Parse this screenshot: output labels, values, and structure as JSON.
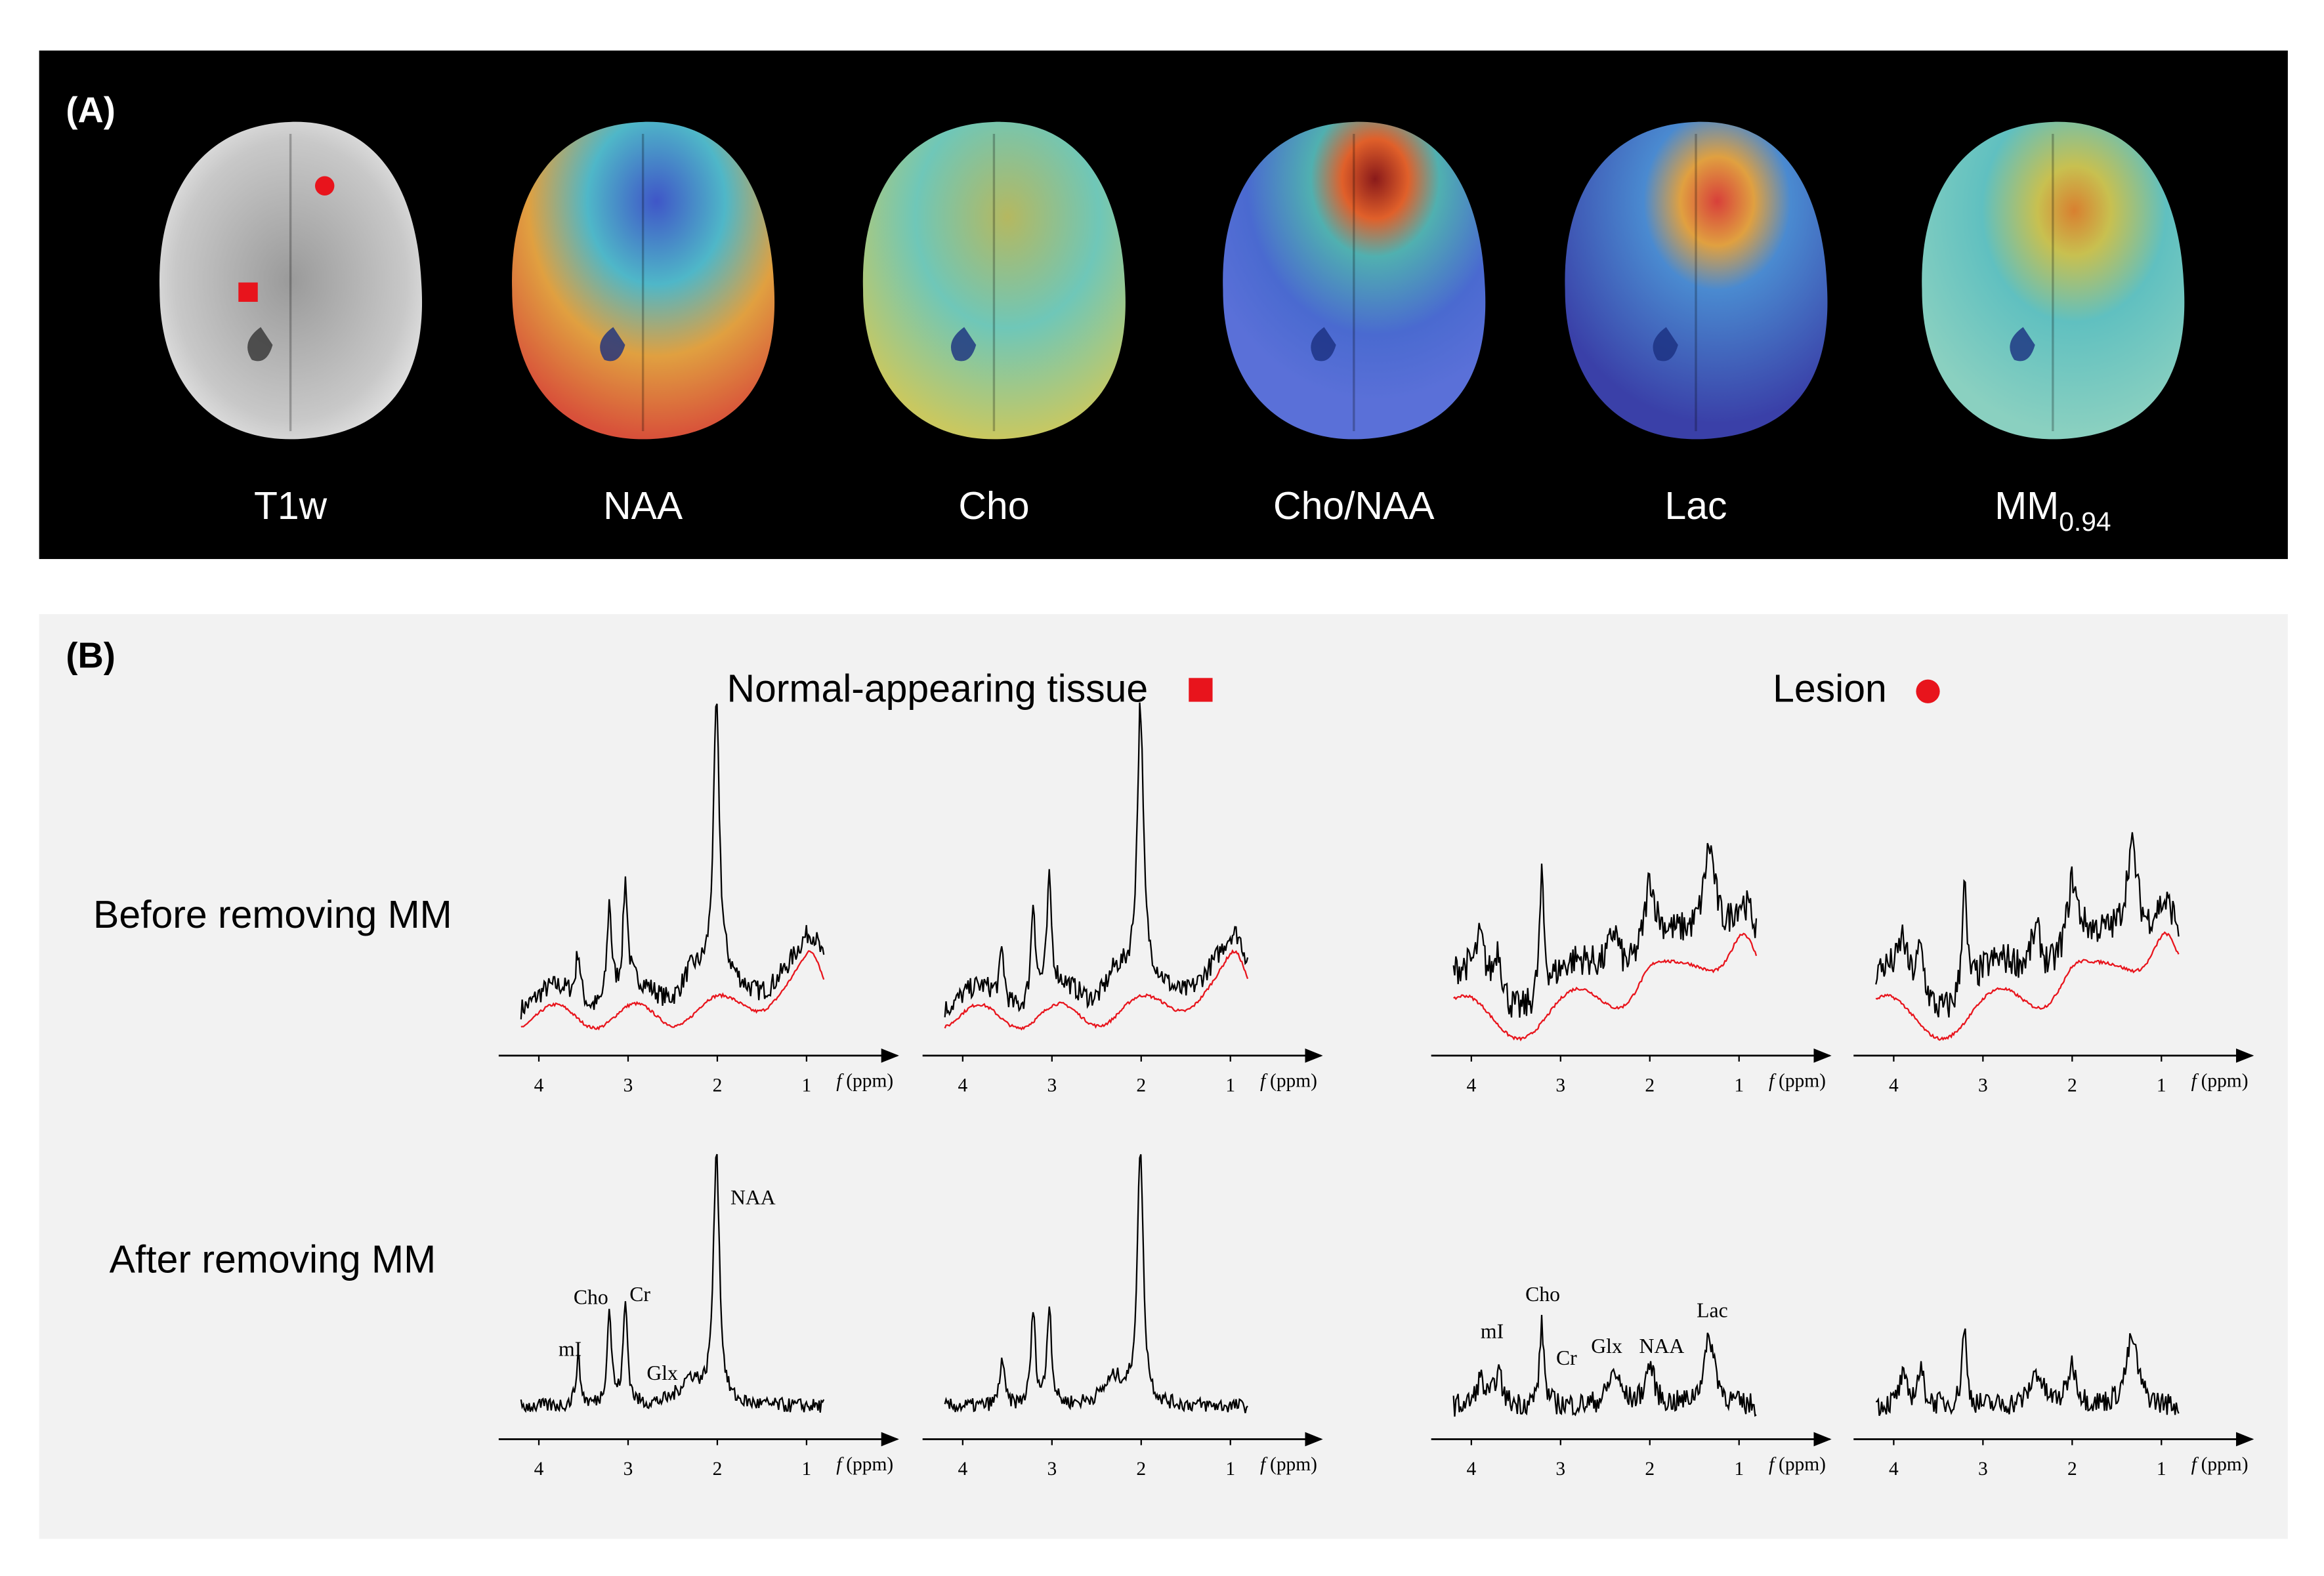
{
  "panel_a": {
    "label": "(A)",
    "images": [
      {
        "label": "T1w"
      },
      {
        "label": "NAA"
      },
      {
        "label": "Cho"
      },
      {
        "label": "Cho/NAA"
      },
      {
        "label": "Lac"
      },
      {
        "label": "MM",
        "subscript": "0.94"
      }
    ]
  },
  "panel_b": {
    "label": "(B)",
    "groups": [
      "Normal-appearing tissue",
      "Lesion"
    ],
    "rows": [
      "Before removing MM",
      "After removing MM"
    ],
    "axis": {
      "ticks": [
        "4",
        "3",
        "2",
        "1"
      ],
      "unit_symbol": "f",
      "unit": "(ppm)"
    },
    "peak_labels": {
      "normal": [
        "mI",
        "Cho",
        "Cr",
        "Glx",
        "NAA"
      ],
      "lesion": [
        "mI",
        "Cho",
        "Cr",
        "Glx",
        "NAA",
        "Lac"
      ]
    }
  }
}
